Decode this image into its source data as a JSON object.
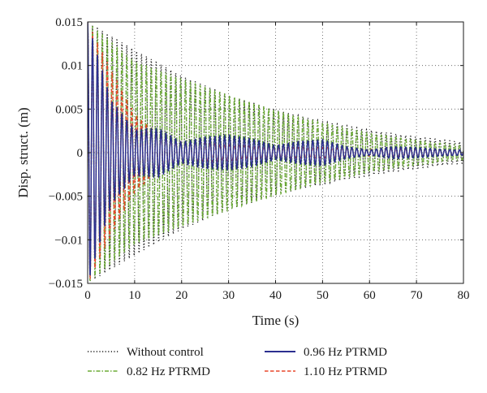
{
  "chart_data": {
    "type": "line",
    "xlabel": "Time (s)",
    "ylabel": "Disp. struct. (m)",
    "xlim": [
      0,
      80
    ],
    "ylim": [
      -0.015,
      0.015
    ],
    "x_ticks": [
      0,
      10,
      20,
      30,
      40,
      50,
      60,
      70,
      80
    ],
    "x_tick_labels": [
      "0",
      "10",
      "20",
      "30",
      "40",
      "50",
      "60",
      "70",
      "80"
    ],
    "y_ticks": [
      0.015,
      0.01,
      0.005,
      0,
      -0.005,
      -0.01,
      -0.015
    ],
    "y_tick_labels": [
      "0.015",
      "0.01",
      "0.005",
      "0",
      "−0.005",
      "−0.01",
      "−0.015"
    ],
    "grid": true,
    "grid_style": "dotted",
    "legend_position": "below",
    "signal": {
      "frequency_hz": 0.96,
      "initial_amplitude": 0.015
    },
    "series": [
      {
        "name": "Without control",
        "color": "#1a1a1a",
        "dash": "1.2,2.4",
        "envelope": [
          [
            0,
            0.015
          ],
          [
            10,
            0.0118
          ],
          [
            20,
            0.0088
          ],
          [
            30,
            0.0066
          ],
          [
            40,
            0.0049
          ],
          [
            50,
            0.0036
          ],
          [
            60,
            0.0026
          ],
          [
            70,
            0.0018
          ],
          [
            80,
            0.0012
          ]
        ]
      },
      {
        "name": "0.82 Hz PTRMD",
        "color": "#6bab35",
        "dash": "5,2,1.5,2",
        "envelope": [
          [
            0,
            0.015
          ],
          [
            10,
            0.0105
          ],
          [
            20,
            0.0085
          ],
          [
            30,
            0.0066
          ],
          [
            40,
            0.0049
          ],
          [
            50,
            0.0034
          ],
          [
            60,
            0.0022
          ],
          [
            70,
            0.0014
          ],
          [
            80,
            0.0008
          ]
        ]
      },
      {
        "name": "0.96 Hz PTRMD",
        "color": "#2b2f8f",
        "dash": "",
        "envelope": [
          [
            0,
            0.015
          ],
          [
            5,
            0.006
          ],
          [
            10,
            0.0026
          ],
          [
            15,
            0.0028
          ],
          [
            20,
            0.0012
          ],
          [
            25,
            0.0018
          ],
          [
            30,
            0.002
          ],
          [
            35,
            0.0016
          ],
          [
            40,
            0.0008
          ],
          [
            45,
            0.0013
          ],
          [
            50,
            0.0015
          ],
          [
            55,
            0.0007
          ],
          [
            60,
            0.0003
          ],
          [
            65,
            0.0007
          ],
          [
            70,
            0.0006
          ],
          [
            75,
            0.0004
          ],
          [
            80,
            0.0003
          ]
        ]
      },
      {
        "name": "1.10 Hz PTRMD",
        "color": "#e8462a",
        "dash": "4.5,2.5",
        "envelope": [
          [
            0,
            0.015
          ],
          [
            5,
            0.0095
          ],
          [
            10,
            0.0045
          ],
          [
            15,
            0.0022
          ],
          [
            20,
            0.0013
          ],
          [
            30,
            0.0009
          ],
          [
            40,
            0.0006
          ],
          [
            50,
            0.0006
          ],
          [
            60,
            0.0004
          ],
          [
            70,
            0.0004
          ],
          [
            80,
            0.0003
          ]
        ]
      }
    ]
  }
}
